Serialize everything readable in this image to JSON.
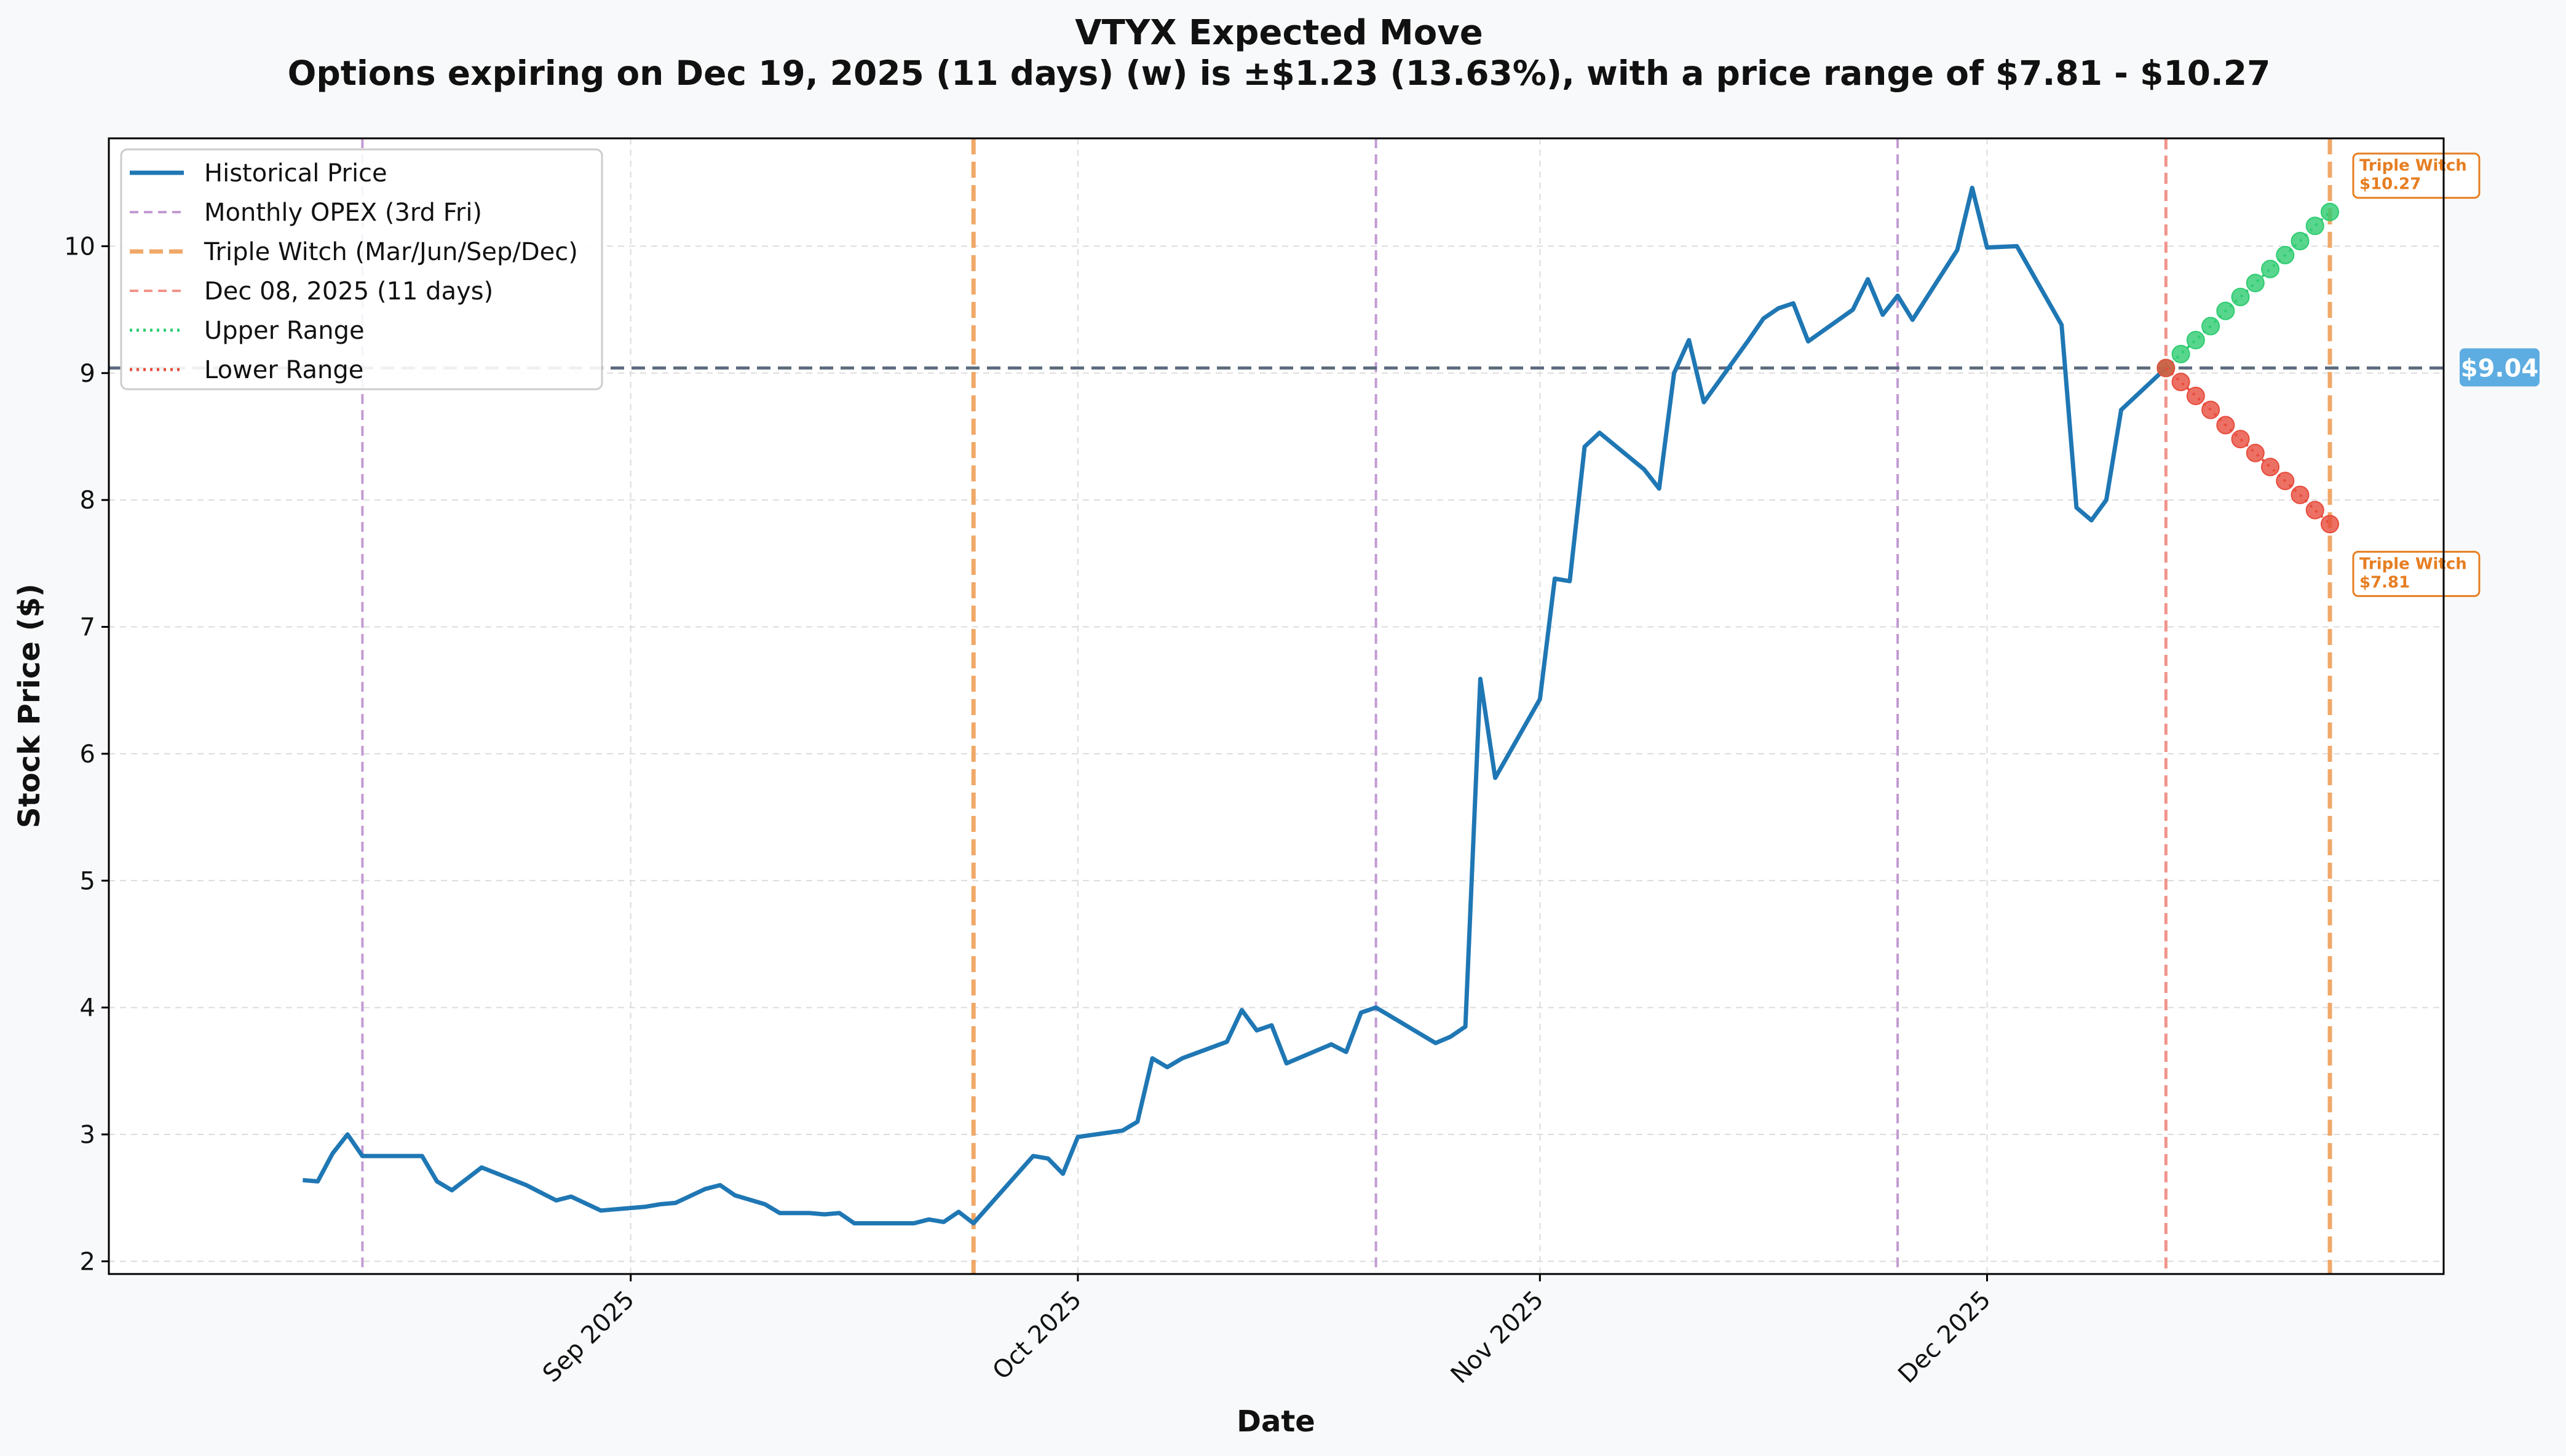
{
  "chart_data": {
    "type": "line",
    "title": "VTYX Expected Move",
    "subtitle": "Options expiring on Dec 19, 2025 (11 days) (w) is ±$1.23 (13.63%), with a price range of $7.81 - $10.27",
    "xlabel": "Date",
    "ylabel": "Stock Price ($)",
    "ylim": [
      1.9,
      10.85
    ],
    "xlim": [
      "2025-08-04",
      "2025-12-24"
    ],
    "grid": true,
    "legend_position": "top-left",
    "y_ticks": [
      2,
      3,
      4,
      5,
      6,
      7,
      8,
      9,
      10
    ],
    "x_ticks": [
      {
        "date": "2025-09-01",
        "label": "Sep 2025"
      },
      {
        "date": "2025-10-01",
        "label": "Oct 2025"
      },
      {
        "date": "2025-11-01",
        "label": "Nov 2025"
      },
      {
        "date": "2025-12-01",
        "label": "Dec 2025"
      }
    ],
    "series": [
      {
        "name": "Historical Price",
        "color": "#1f77b4",
        "points": [
          [
            "2025-08-10",
            2.64
          ],
          [
            "2025-08-11",
            2.63
          ],
          [
            "2025-08-12",
            2.85
          ],
          [
            "2025-08-13",
            3.0
          ],
          [
            "2025-08-14",
            2.83
          ],
          [
            "2025-08-17",
            2.83
          ],
          [
            "2025-08-18",
            2.83
          ],
          [
            "2025-08-19",
            2.63
          ],
          [
            "2025-08-20",
            2.56
          ],
          [
            "2025-08-22",
            2.74
          ],
          [
            "2025-08-25",
            2.6
          ],
          [
            "2025-08-27",
            2.48
          ],
          [
            "2025-08-28",
            2.51
          ],
          [
            "2025-08-30",
            2.4
          ],
          [
            "2025-09-02",
            2.43
          ],
          [
            "2025-09-03",
            2.45
          ],
          [
            "2025-09-04",
            2.46
          ],
          [
            "2025-09-06",
            2.57
          ],
          [
            "2025-09-07",
            2.6
          ],
          [
            "2025-09-08",
            2.52
          ],
          [
            "2025-09-10",
            2.45
          ],
          [
            "2025-09-11",
            2.38
          ],
          [
            "2025-09-13",
            2.38
          ],
          [
            "2025-09-14",
            2.37
          ],
          [
            "2025-09-15",
            2.38
          ],
          [
            "2025-09-16",
            2.3
          ],
          [
            "2025-09-20",
            2.3
          ],
          [
            "2025-09-21",
            2.33
          ],
          [
            "2025-09-22",
            2.31
          ],
          [
            "2025-09-23",
            2.39
          ],
          [
            "2025-09-24",
            2.3
          ],
          [
            "2025-09-28",
            2.83
          ],
          [
            "2025-09-29",
            2.81
          ],
          [
            "2025-09-30",
            2.69
          ],
          [
            "2025-10-01",
            2.98
          ],
          [
            "2025-10-04",
            3.03
          ],
          [
            "2025-10-05",
            3.1
          ],
          [
            "2025-10-06",
            3.6
          ],
          [
            "2025-10-07",
            3.53
          ],
          [
            "2025-10-08",
            3.6
          ],
          [
            "2025-10-11",
            3.73
          ],
          [
            "2025-10-12",
            3.98
          ],
          [
            "2025-10-13",
            3.82
          ],
          [
            "2025-10-14",
            3.86
          ],
          [
            "2025-10-15",
            3.56
          ],
          [
            "2025-10-18",
            3.71
          ],
          [
            "2025-10-19",
            3.65
          ],
          [
            "2025-10-20",
            3.96
          ],
          [
            "2025-10-21",
            4.0
          ],
          [
            "2025-10-25",
            3.72
          ],
          [
            "2025-10-26",
            3.77
          ],
          [
            "2025-10-27",
            3.85
          ],
          [
            "2025-10-28",
            6.59
          ],
          [
            "2025-10-29",
            5.81
          ],
          [
            "2025-11-01",
            6.43
          ],
          [
            "2025-11-02",
            7.38
          ],
          [
            "2025-11-03",
            7.36
          ],
          [
            "2025-11-04",
            8.42
          ],
          [
            "2025-11-05",
            8.53
          ],
          [
            "2025-11-08",
            8.24
          ],
          [
            "2025-11-09",
            8.09
          ],
          [
            "2025-11-10",
            9.0
          ],
          [
            "2025-11-11",
            9.26
          ],
          [
            "2025-11-12",
            8.77
          ],
          [
            "2025-11-15",
            9.26
          ],
          [
            "2025-11-16",
            9.43
          ],
          [
            "2025-11-17",
            9.51
          ],
          [
            "2025-11-18",
            9.55
          ],
          [
            "2025-11-19",
            9.25
          ],
          [
            "2025-11-22",
            9.5
          ],
          [
            "2025-11-23",
            9.74
          ],
          [
            "2025-11-24",
            9.46
          ],
          [
            "2025-11-25",
            9.61
          ],
          [
            "2025-11-26",
            9.42
          ],
          [
            "2025-11-29",
            9.97
          ],
          [
            "2025-11-30",
            10.46
          ],
          [
            "2025-12-01",
            9.99
          ],
          [
            "2025-12-03",
            10.0
          ],
          [
            "2025-12-06",
            9.38
          ],
          [
            "2025-12-07",
            7.94
          ],
          [
            "2025-12-08",
            7.84
          ],
          [
            "2025-12-09",
            8.0
          ],
          [
            "2025-12-10",
            8.71
          ],
          [
            "2025-12-13",
            9.04
          ]
        ]
      },
      {
        "name": "Upper Range",
        "color": "#2ecc71",
        "points": [
          [
            "2025-12-13",
            9.04
          ],
          [
            "2025-12-14",
            9.15
          ],
          [
            "2025-12-15",
            9.26
          ],
          [
            "2025-12-16",
            9.37
          ],
          [
            "2025-12-17",
            9.49
          ],
          [
            "2025-12-18",
            9.6
          ],
          [
            "2025-12-19",
            9.71
          ],
          [
            "2025-12-20",
            9.82
          ],
          [
            "2025-12-21",
            9.93
          ],
          [
            "2025-12-22",
            10.04
          ],
          [
            "2025-12-23",
            10.16
          ],
          [
            "2025-12-24",
            10.27
          ]
        ]
      },
      {
        "name": "Lower Range",
        "color": "#e74c3c",
        "points": [
          [
            "2025-12-13",
            9.04
          ],
          [
            "2025-12-14",
            8.93
          ],
          [
            "2025-12-15",
            8.82
          ],
          [
            "2025-12-16",
            8.71
          ],
          [
            "2025-12-17",
            8.59
          ],
          [
            "2025-12-18",
            8.48
          ],
          [
            "2025-12-19",
            8.37
          ],
          [
            "2025-12-20",
            8.26
          ],
          [
            "2025-12-21",
            8.15
          ],
          [
            "2025-12-22",
            8.04
          ],
          [
            "2025-12-23",
            7.92
          ],
          [
            "2025-12-24",
            7.81
          ]
        ]
      }
    ],
    "current_price": {
      "value": 9.04,
      "label": "$9.04",
      "color": "#5dade2"
    },
    "vertical_lines": [
      {
        "date": "2025-08-14",
        "kind": "monthly_opex"
      },
      {
        "date": "2025-09-24",
        "kind": "triple_witch"
      },
      {
        "date": "2025-10-21",
        "kind": "monthly_opex"
      },
      {
        "date": "2025-11-25",
        "kind": "monthly_opex"
      },
      {
        "date": "2025-12-13",
        "kind": "today"
      },
      {
        "date": "2025-12-24",
        "kind": "triple_witch"
      }
    ],
    "annotations": [
      {
        "line1": "Triple Witch",
        "line2": "$10.27",
        "date": "2025-12-24",
        "value": 10.27,
        "placement": "above"
      },
      {
        "line1": "Triple Witch",
        "line2": "$7.81",
        "date": "2025-12-24",
        "value": 7.81,
        "placement": "below"
      }
    ],
    "legend": [
      {
        "label": "Historical Price",
        "style": "solid",
        "color": "#1f77b4"
      },
      {
        "label": "Monthly OPEX (3rd Fri)",
        "style": "dashed",
        "color": "#c39bd3"
      },
      {
        "label": "Triple Witch (Mar/Jun/Sep/Dec)",
        "style": "dashed-thick",
        "color": "#f0a868"
      },
      {
        "label": "Dec 08, 2025 (11 days)",
        "style": "dashed",
        "color": "#f1948a"
      },
      {
        "label": "Upper Range",
        "style": "dotted",
        "color": "#2ecc71"
      },
      {
        "label": "Lower Range",
        "style": "dotted",
        "color": "#e74c3c"
      }
    ],
    "colors": {
      "monthly_opex": "#c39bd3",
      "triple_witch": "#f0a868",
      "today": "#f1948a",
      "annotation": "#e67e22",
      "reference": "#5d6d7e"
    }
  }
}
